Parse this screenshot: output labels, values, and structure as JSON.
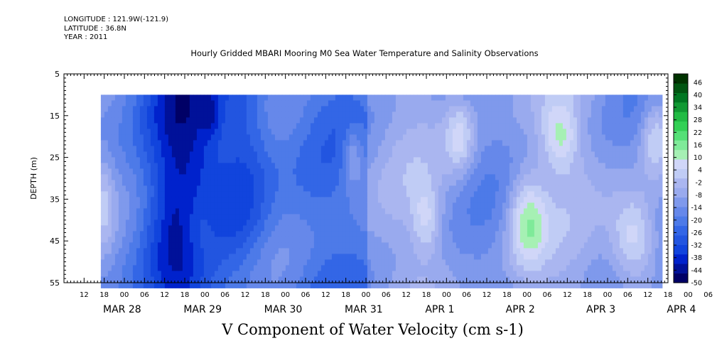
{
  "meta": {
    "longitude": "LONGITUDE : 121.9W(-121.9)",
    "latitude": "LATITUDE : 36.8N",
    "year": "YEAR : 2011"
  },
  "chart_data": {
    "type": "heatmap",
    "title": "Hourly Gridded MBARI Mooring M0 Sea Water Temperature and Salinity Observations",
    "xlabel": "V Component of Water Velocity (cm s-1)",
    "ylabel": "DEPTH (m)",
    "ylim": [
      5,
      55
    ],
    "y_inverted": true,
    "y_ticks": [
      5,
      15,
      25,
      35,
      45,
      55
    ],
    "x_range_hours": [
      "2011-03-28 06:00",
      "2011-04-04 18:00"
    ],
    "x_hour_ticks": [
      "12",
      "18",
      "00",
      "06",
      "12",
      "18",
      "00",
      "06",
      "12",
      "18",
      "00",
      "06",
      "12",
      "18",
      "00",
      "06",
      "12",
      "18",
      "00",
      "06",
      "12",
      "18",
      "00",
      "06",
      "12",
      "18",
      "00",
      "06",
      "12",
      "18",
      "00",
      "06"
    ],
    "x_date_labels": [
      "MAR 28",
      "MAR 29",
      "MAR 30",
      "MAR 31",
      "APR  1",
      "APR  2",
      "APR  3",
      "APR  4"
    ],
    "data_extent": {
      "x_start": "2011-03-28 17:00",
      "x_end": "2011-04-04 16:00",
      "depth_top": 10,
      "depth_bottom": 55
    },
    "colorbar": {
      "labels": [
        "46",
        "40",
        "34",
        "28",
        "22",
        "16",
        "10",
        "4",
        "-2",
        "-8",
        "-14",
        "-20",
        "-26",
        "-32",
        "-38",
        "-44",
        "-50"
      ],
      "min": -50,
      "max": 50,
      "colors_low_to_high": [
        "#000066",
        "#001199",
        "#0022cc",
        "#1144dd",
        "#2255e0",
        "#3366e6",
        "#4d7ae8",
        "#6688ea",
        "#7f99ec",
        "#99aaee",
        "#aab6f0",
        "#c0ccf5",
        "#d0d6f8",
        "#a6f0b4",
        "#7fea99",
        "#55e077",
        "#33d055",
        "#22bb44",
        "#119933",
        "#007722",
        "#005511",
        "#003300"
      ]
    },
    "color_field_summary": "values mostly between -30 and 10 cm/s; strongest negative (darkest blue) on Mar 29 18:00 to Mar 30 12:00 near 10-55 m; positive (green) patches mainly after Apr 1 near 15-25 m and 35-55 m"
  }
}
